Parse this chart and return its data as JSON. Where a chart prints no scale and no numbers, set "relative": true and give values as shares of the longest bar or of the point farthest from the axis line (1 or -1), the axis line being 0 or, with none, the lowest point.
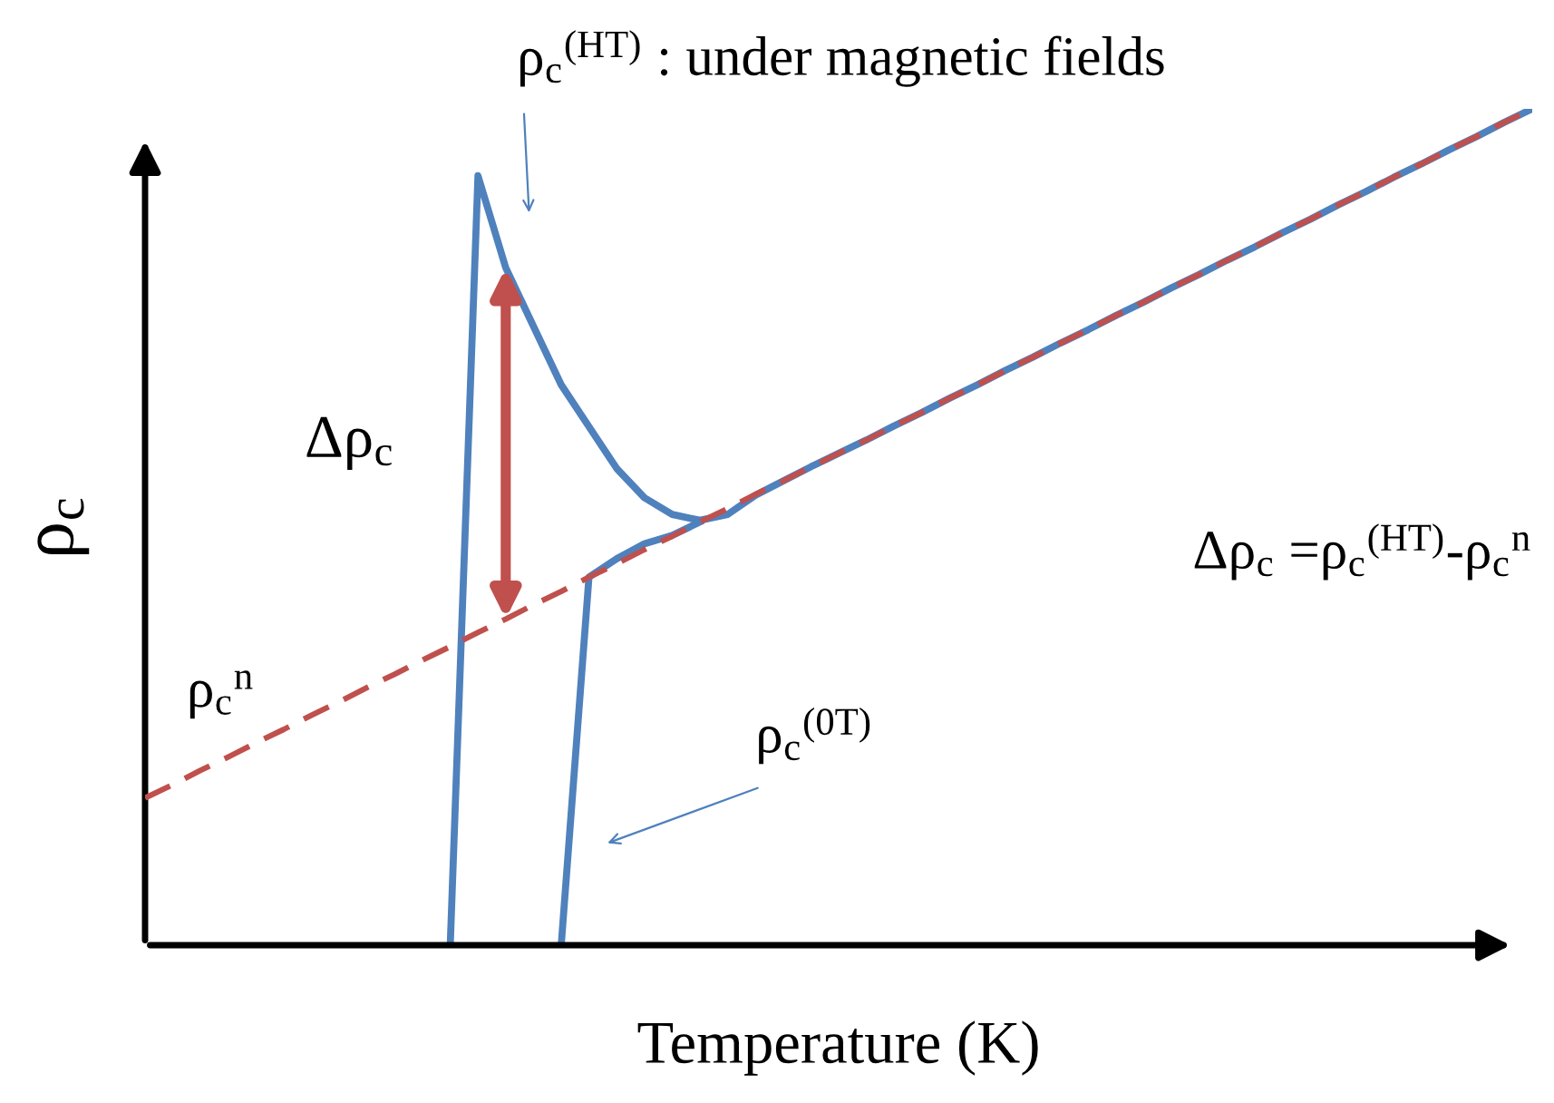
{
  "chart_data": {
    "type": "line",
    "relative": true,
    "xlabel": "Temperature (K)",
    "ylabel": "ρ$_{c}$",
    "categories": [
      null,
      null,
      null,
      null,
      null,
      null,
      null,
      null,
      null,
      null,
      null,
      null,
      null,
      null,
      null,
      null,
      null,
      null,
      null,
      null,
      null,
      null,
      null,
      null,
      null,
      null,
      null,
      null,
      null,
      null,
      null,
      null,
      null,
      null,
      null,
      null,
      null,
      null,
      null,
      null,
      null,
      null,
      null,
      null,
      null,
      null,
      null,
      null,
      null,
      null,
      null
    ],
    "series": [
      {
        "name": "ρ$_{c}$$^{(HT)}$ : under magnetic fields",
        "color": "#4f81bd",
        "line_style": "solid",
        "values": [
          null,
          null,
          null,
          null,
          null,
          null,
          null,
          null,
          null,
          null,
          null,
          0,
          0.92,
          0.81,
          0.74,
          0.67,
          0.62,
          0.57,
          0.535,
          0.515,
          0.508,
          0.515,
          0.538,
          0.555,
          0.572,
          0.588,
          0.604,
          0.621,
          0.637,
          0.654,
          0.67,
          0.687,
          0.703,
          0.72,
          0.736,
          0.753,
          0.769,
          0.786,
          0.802,
          0.819,
          0.835,
          0.852,
          0.868,
          0.885,
          0.901,
          0.918,
          0.934,
          0.951,
          0.967,
          0.984,
          1.0
        ]
      },
      {
        "name": "ρ$_{c}$$^{(0T)}$",
        "color": "#4f81bd",
        "line_style": "solid",
        "values": [
          null,
          null,
          null,
          null,
          null,
          null,
          null,
          null,
          null,
          null,
          null,
          null,
          null,
          null,
          null,
          0,
          0.44,
          0.462,
          0.48,
          0.49,
          0.506,
          null,
          null,
          null,
          null,
          null,
          null,
          null,
          null,
          null,
          null,
          null,
          null,
          null,
          null,
          null,
          null,
          null,
          null,
          null,
          null,
          null,
          null,
          null,
          null,
          null,
          null,
          null,
          null,
          null,
          null
        ]
      },
      {
        "name": "ρ$_{c}$$^{n}$",
        "color": "#c0504d",
        "line_style": "dashed",
        "values": [
          0.176,
          0.192,
          0.209,
          0.225,
          0.242,
          0.258,
          0.275,
          0.291,
          0.308,
          0.324,
          0.341,
          0.357,
          0.374,
          0.39,
          0.407,
          0.423,
          0.44,
          0.456,
          0.473,
          0.489,
          0.506,
          0.522,
          0.539,
          0.555,
          0.572,
          0.588,
          0.604,
          0.621,
          0.637,
          0.654,
          0.67,
          0.687,
          0.703,
          0.72,
          0.736,
          0.753,
          0.769,
          0.786,
          0.802,
          0.819,
          0.835,
          0.852,
          0.868,
          0.885,
          0.901,
          0.918,
          0.934,
          0.951,
          0.967,
          0.984,
          1.0
        ]
      }
    ],
    "annotations": [
      "Δρ$_{c}$",
      "Δρ$_{c}$ =ρ$_{c}$$^{(HT)}$-ρ$_{c}$$^{n}$"
    ]
  }
}
